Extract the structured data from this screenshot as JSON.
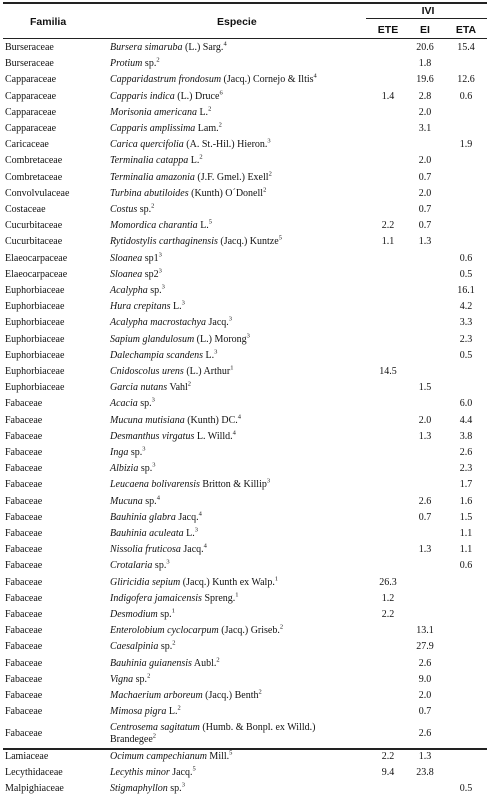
{
  "headers": {
    "familia": "Familia",
    "especie": "Especie",
    "ivi": "IVI",
    "ete": "ETE",
    "ei": "EI",
    "eta": "ETA"
  },
  "rows": [
    {
      "familia": "Burseraceae",
      "species": "Bursera simaruba",
      "author": " (L.) Sarg.",
      "note": "4",
      "ete": "",
      "ei": "20.6",
      "eta": "15.4"
    },
    {
      "familia": "Burseraceae",
      "species": "Protium",
      "author": " sp.",
      "note": "2",
      "ete": "",
      "ei": "1.8",
      "eta": ""
    },
    {
      "familia": "Capparaceae",
      "species": "Capparidastrum frondosum",
      "author": " (Jacq.) Cornejo & Iltis",
      "note": "4",
      "ete": "",
      "ei": "19.6",
      "eta": "12.6"
    },
    {
      "familia": "Capparaceae",
      "species": "Capparis indica",
      "author": " (L.) Druce",
      "note": "6",
      "ete": "1.4",
      "ei": "2.8",
      "eta": "0.6"
    },
    {
      "familia": "Capparaceae",
      "species": "Morisonia americana",
      "author": " L.",
      "note": "2",
      "ete": "",
      "ei": "2.0",
      "eta": ""
    },
    {
      "familia": "Capparaceae",
      "species": "Capparis amplissima",
      "author": " Lam.",
      "note": "2",
      "ete": "",
      "ei": "3.1",
      "eta": ""
    },
    {
      "familia": "Caricaceae",
      "species": "Carica quercifolia",
      "author": " (A. St.-Hil.) Hieron.",
      "note": "3",
      "ete": "",
      "ei": "",
      "eta": "1.9"
    },
    {
      "familia": "Combretaceae",
      "species": "Terminalia catappa",
      "author": " L.",
      "note": "2",
      "ete": "",
      "ei": "2.0",
      "eta": ""
    },
    {
      "familia": "Combretaceae",
      "species": "Terminalia amazonia",
      "author": " (J.F. Gmel.) Exell",
      "note": "2",
      "ete": "",
      "ei": "0.7",
      "eta": ""
    },
    {
      "familia": "Convolvulaceae",
      "species": "Turbina abutiloides",
      "author": " (Kunth) O´Donell",
      "note": "2",
      "ete": "",
      "ei": "2.0",
      "eta": ""
    },
    {
      "familia": "Costaceae",
      "species": "Costus",
      "author": " sp.",
      "note": "2",
      "ete": "",
      "ei": "0.7",
      "eta": ""
    },
    {
      "familia": "Cucurbitaceae",
      "species": "Momordica charantia",
      "author": " L.",
      "note": "5",
      "ete": "2.2",
      "ei": "0.7",
      "eta": ""
    },
    {
      "familia": "Cucurbitaceae",
      "species": "Rytidostylis carthaginensis",
      "author": " (Jacq.) Kuntze",
      "note": "5",
      "ete": "1.1",
      "ei": "1.3",
      "eta": ""
    },
    {
      "familia": "Elaeocarpaceae",
      "species": "Sloanea",
      "author": " sp1",
      "note": "3",
      "ete": "",
      "ei": "",
      "eta": "0.6"
    },
    {
      "familia": "Elaeocarpaceae",
      "species": "Sloanea",
      "author": " sp2",
      "note": "3",
      "ete": "",
      "ei": "",
      "eta": "0.5"
    },
    {
      "familia": "Euphorbiaceae",
      "species": "Acalypha",
      "author": " sp.",
      "note": "3",
      "ete": "",
      "ei": "",
      "eta": "16.1"
    },
    {
      "familia": "Euphorbiaceae",
      "species": "Hura crepitans",
      "author": " L.",
      "note": "3",
      "ete": "",
      "ei": "",
      "eta": "4.2"
    },
    {
      "familia": "Euphorbiaceae",
      "species": "Acalypha macrostachya",
      "author": " Jacq.",
      "note": "3",
      "ete": "",
      "ei": "",
      "eta": "3.3"
    },
    {
      "familia": "Euphorbiaceae",
      "species": "Sapium glandulosum",
      "author": " (L.) Morong",
      "note": "3",
      "ete": "",
      "ei": "",
      "eta": "2.3"
    },
    {
      "familia": "Euphorbiaceae",
      "species": "Dalechampia scandens",
      "author": " L.",
      "note": "3",
      "ete": "",
      "ei": "",
      "eta": "0.5"
    },
    {
      "familia": "Euphorbiaceae",
      "species": "Cnidoscolus urens",
      "author": " (L.) Arthur",
      "note": "1",
      "ete": "14.5",
      "ei": "",
      "eta": ""
    },
    {
      "familia": "Euphorbiaceae",
      "species": "Garcia nutans",
      "author": " Vahl",
      "note": "2",
      "ete": "",
      "ei": "1.5",
      "eta": ""
    },
    {
      "familia": "Fabaceae",
      "species": "Acacia",
      "author": " sp.",
      "note": "3",
      "ete": "",
      "ei": "",
      "eta": "6.0"
    },
    {
      "familia": "Fabaceae",
      "species": "Mucuna mutisiana",
      "author": " (Kunth) DC.",
      "note": "4",
      "ete": "",
      "ei": "2.0",
      "eta": "4.4"
    },
    {
      "familia": "Fabaceae",
      "species": "Desmanthus virgatus",
      "author": " L. Willd.",
      "note": "4",
      "ete": "",
      "ei": "1.3",
      "eta": "3.8"
    },
    {
      "familia": "Fabaceae",
      "species": "Inga",
      "author": " sp.",
      "note": "3",
      "ete": "",
      "ei": "",
      "eta": "2.6"
    },
    {
      "familia": "Fabaceae",
      "species": "Albizia",
      "author": " sp.",
      "note": "3",
      "ete": "",
      "ei": "",
      "eta": "2.3"
    },
    {
      "familia": "Fabaceae",
      "species": "Leucaena bolivarensis",
      "author": " Britton & Killip",
      "note": "3",
      "ete": "",
      "ei": "",
      "eta": "1.7"
    },
    {
      "familia": "Fabaceae",
      "species": "Mucuna",
      "author": " sp.",
      "note": "4",
      "ete": "",
      "ei": "2.6",
      "eta": "1.6"
    },
    {
      "familia": "Fabaceae",
      "species": "Bauhinia glabra",
      "author": " Jacq.",
      "note": "4",
      "ete": "",
      "ei": "0.7",
      "eta": "1.5"
    },
    {
      "familia": "Fabaceae",
      "species": "Bauhinia aculeata",
      "author": " L.",
      "note": "3",
      "ete": "",
      "ei": "",
      "eta": "1.1"
    },
    {
      "familia": "Fabaceae",
      "species": "Nissolia fruticosa",
      "author": " Jacq.",
      "note": "4",
      "ete": "",
      "ei": "1.3",
      "eta": "1.1"
    },
    {
      "familia": "Fabaceae",
      "species": "Crotalaria",
      "author": " sp.",
      "note": "3",
      "ete": "",
      "ei": "",
      "eta": "0.6"
    },
    {
      "familia": "Fabaceae",
      "species": "Gliricidia sepium",
      "author": " (Jacq.) Kunth ex Walp.",
      "note": "1",
      "ete": "26.3",
      "ei": "",
      "eta": ""
    },
    {
      "familia": "Fabaceae",
      "species": "Indigofera jamaicensis",
      "author": " Spreng.",
      "note": "1",
      "ete": "1.2",
      "ei": "",
      "eta": ""
    },
    {
      "familia": "Fabaceae",
      "species": "Desmodium",
      "author": " sp.",
      "note": "1",
      "ete": "2.2",
      "ei": "",
      "eta": ""
    },
    {
      "familia": "Fabaceae",
      "species": "Enterolobium cyclocarpum",
      "author": " (Jacq.) Griseb.",
      "note": "2",
      "ete": "",
      "ei": "13.1",
      "eta": ""
    },
    {
      "familia": "Fabaceae",
      "species": "Caesalpinia",
      "author": " sp.",
      "note": "2",
      "ete": "",
      "ei": "27.9",
      "eta": ""
    },
    {
      "familia": "Fabaceae",
      "species": "Bauhinia guianensis",
      "author": " Aubl.",
      "note": "2",
      "ete": "",
      "ei": "2.6",
      "eta": ""
    },
    {
      "familia": "Fabaceae",
      "species": "Vigna",
      "author": " sp.",
      "note": "2",
      "ete": "",
      "ei": "9.0",
      "eta": ""
    },
    {
      "familia": "Fabaceae",
      "species": "Machaerium arboreum",
      "author": " (Jacq.) Benth",
      "note": "2",
      "ete": "",
      "ei": "2.0",
      "eta": ""
    },
    {
      "familia": "Fabaceae",
      "species": "Mimosa pigra",
      "author": " L.",
      "note": "2",
      "ete": "",
      "ei": "0.7",
      "eta": ""
    },
    {
      "familia": "Fabaceae",
      "species": "Centrosema sagitatum",
      "author": " (Humb. & Bonpl. ex Willd.) Brandegee",
      "note": "2",
      "ete": "",
      "ei": "2.6",
      "eta": ""
    },
    {
      "familia": "Lamiaceae",
      "species": "Ocimum campechianum",
      "author": " Mill.",
      "note": "5",
      "ete": "2.2",
      "ei": "1.3",
      "eta": ""
    },
    {
      "familia": "Lecythidaceae",
      "species": "Lecythis minor",
      "author": " Jacq.",
      "note": "5",
      "ete": "9.4",
      "ei": "23.8",
      "eta": ""
    },
    {
      "familia": "Malpighiaceae",
      "species": "Stigmaphyllon",
      "author": " sp.",
      "note": "3",
      "ete": "",
      "ei": "",
      "eta": "0.5"
    }
  ]
}
